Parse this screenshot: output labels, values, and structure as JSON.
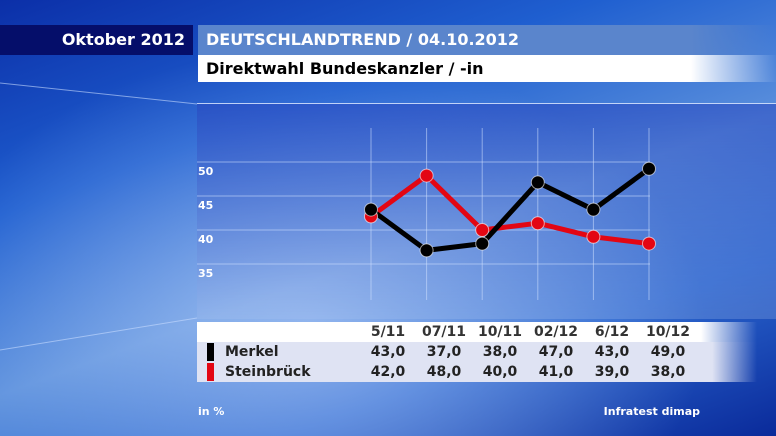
{
  "header": {
    "date": "Oktober 2012",
    "title": "DEUTSCHLANDTREND / 04.10.2012",
    "subtitle": "Direktwahl Bundeskanzler / -in"
  },
  "footer": {
    "unit": "in %",
    "source": "Infratest dimap"
  },
  "chart_data": {
    "type": "line",
    "title": "Direktwahl Bundeskanzler / -in",
    "categories": [
      "5/11",
      "07/11",
      "10/11",
      "02/12",
      "6/12",
      "10/12"
    ],
    "yticks": [
      "50",
      "45",
      "40",
      "35"
    ],
    "ylim": [
      30,
      55
    ],
    "series": [
      {
        "name": "Merkel",
        "color": "#000000",
        "values": [
          43.0,
          37.0,
          38.0,
          47.0,
          43.0,
          49.0
        ],
        "labels": [
          "43,0",
          "37,0",
          "38,0",
          "47,0",
          "43,0",
          "49,0"
        ]
      },
      {
        "name": "Steinbrück",
        "color": "#e30613",
        "values": [
          42.0,
          48.0,
          40.0,
          41.0,
          39.0,
          38.0
        ],
        "labels": [
          "42,0",
          "48,0",
          "40,0",
          "41,0",
          "39,0",
          "38,0"
        ]
      }
    ]
  }
}
